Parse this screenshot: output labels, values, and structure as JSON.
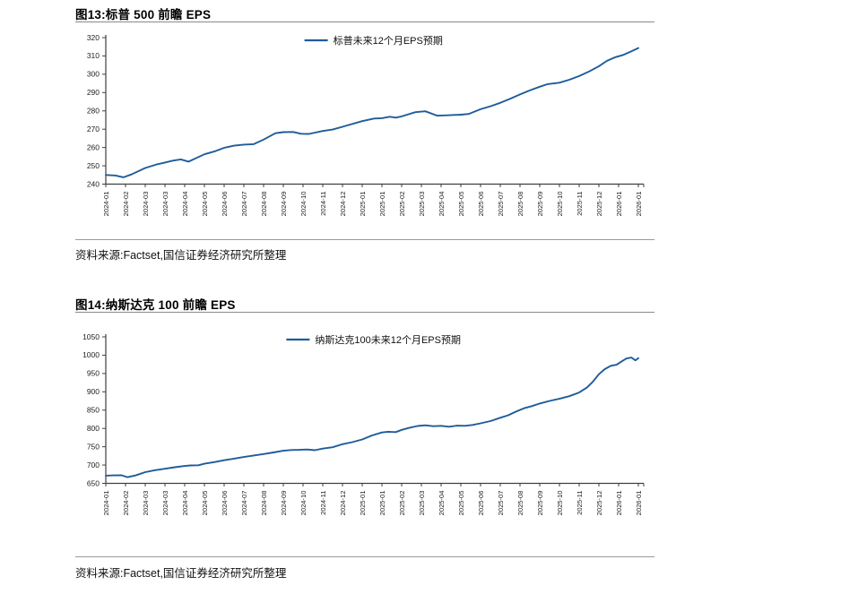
{
  "page": {
    "background": "#ffffff"
  },
  "figure13": {
    "title": "图13:标普 500 前瞻 EPS",
    "source": "资料来源:Factset,国信证券经济研究所整理"
  },
  "figure14": {
    "title": "图14:纳斯达克 100 前瞻 EPS",
    "source": "资料来源:Factset,国信证券经济研究所整理"
  },
  "chart_data": [
    {
      "type": "line",
      "title": "图13:标普 500 前瞻 EPS",
      "legend": [
        "标普未来12个月EPS预期"
      ],
      "legend_position": "top-center",
      "line_color": "#1f5c99",
      "axis_color": "#404040",
      "grid": false,
      "ylim": [
        240,
        320
      ],
      "ytick_step": 10,
      "yticks": [
        240,
        250,
        260,
        270,
        280,
        290,
        300,
        310,
        320
      ],
      "categories": [
        "2024-01",
        "2024-02",
        "2024-03",
        "2024-03",
        "2024-04",
        "2024-05",
        "2024-06",
        "2024-07",
        "2024-08",
        "2024-09",
        "2024-10",
        "2024-11",
        "2024-12",
        "2025-01",
        "2025-01",
        "2025-02",
        "2025-03",
        "2025-04",
        "2025-05",
        "2025-06",
        "2025-07",
        "2025-08",
        "2025-09",
        "2025-10",
        "2025-11",
        "2025-12",
        "2026-01",
        "2026-01"
      ],
      "series": [
        {
          "name": "标普未来12个月EPS预期",
          "x": [
            0,
            0.5,
            0.9,
            1.3,
            2,
            2.6,
            3,
            3.4,
            3.8,
            4.2,
            5,
            5.5,
            6,
            6.5,
            7,
            7.5,
            8,
            8.6,
            9,
            9.5,
            9.9,
            10.3,
            11,
            11.5,
            12,
            13,
            13.6,
            14,
            14.4,
            14.7,
            15,
            15.7,
            16.2,
            16.8,
            17.3,
            18,
            18.4,
            19,
            19.5,
            20,
            20.5,
            21,
            21.5,
            22,
            22.4,
            23,
            23.5,
            24,
            24.5,
            25,
            25.4,
            25.8,
            26.2,
            26.6,
            27
          ],
          "y": [
            245,
            244.7,
            243.7,
            245.3,
            248.8,
            250.8,
            251.8,
            252.8,
            253.5,
            252.3,
            256.3,
            257.8,
            259.8,
            261,
            261.6,
            261.8,
            264.3,
            267.8,
            268.4,
            268.5,
            267.5,
            267.4,
            269,
            269.8,
            271.3,
            274.4,
            275.8,
            276,
            276.8,
            276.3,
            277,
            279.3,
            279.8,
            277.4,
            277.6,
            277.9,
            278.3,
            280.9,
            282.5,
            284.4,
            286.6,
            289,
            291.2,
            293.2,
            294.6,
            295.4,
            297,
            299,
            301.5,
            304.4,
            307.3,
            309.2,
            310.4,
            312.3,
            314.3
          ]
        }
      ]
    },
    {
      "type": "line",
      "title": "图14:纳斯达克 100 前瞻 EPS",
      "legend": [
        "纳斯达克100未来12个月EPS预期"
      ],
      "legend_position": "top-center",
      "line_color": "#1f5c99",
      "axis_color": "#404040",
      "grid": false,
      "ylim": [
        650,
        1050
      ],
      "ytick_step": 50,
      "yticks": [
        650,
        700,
        750,
        800,
        850,
        900,
        950,
        1000,
        1050
      ],
      "categories": [
        "2024-01",
        "2024-02",
        "2024-03",
        "2024-03",
        "2024-04",
        "2024-05",
        "2024-06",
        "2024-07",
        "2024-08",
        "2024-09",
        "2024-10",
        "2024-11",
        "2024-12",
        "2025-01",
        "2025-01",
        "2025-02",
        "2025-03",
        "2025-04",
        "2025-05",
        "2025-06",
        "2025-07",
        "2025-08",
        "2025-09",
        "2025-10",
        "2025-11",
        "2025-12",
        "2026-01",
        "2026-01"
      ],
      "series": [
        {
          "name": "纳斯达克100未来12个月EPS预期",
          "x": [
            0,
            0.4,
            0.8,
            1.1,
            1.5,
            2,
            2.5,
            3,
            3.5,
            4,
            4.3,
            4.7,
            5,
            5.5,
            6,
            6.5,
            7,
            7.5,
            8,
            8.5,
            9,
            9.4,
            9.8,
            10.2,
            10.6,
            11,
            11.5,
            12,
            12.5,
            13,
            13.5,
            14,
            14.3,
            14.7,
            15,
            15.4,
            15.8,
            16.2,
            16.6,
            17,
            17.4,
            17.8,
            18.2,
            18.6,
            19,
            19.5,
            20,
            20.4,
            20.8,
            21.2,
            21.6,
            22,
            22.5,
            23,
            23.5,
            24,
            24.4,
            24.7,
            25,
            25.3,
            25.6,
            25.9,
            26.15,
            26.4,
            26.65,
            26.85,
            27
          ],
          "y": [
            671,
            671.8,
            672,
            667,
            671.5,
            680.5,
            686,
            690,
            694,
            697.5,
            699,
            699.5,
            703.5,
            708,
            713,
            717.5,
            722,
            726,
            730,
            734.5,
            739,
            741,
            741.5,
            742.5,
            740.5,
            745,
            748.5,
            757,
            762.5,
            770,
            781,
            789,
            791,
            790,
            796,
            802,
            806.5,
            808.5,
            806,
            807,
            804.5,
            807.5,
            807,
            809.5,
            814,
            820,
            829,
            836,
            846,
            855,
            861,
            868,
            875,
            881,
            888,
            898,
            912,
            928,
            948,
            962,
            971,
            974,
            983,
            991,
            993.5,
            986,
            992
          ]
        }
      ]
    }
  ]
}
